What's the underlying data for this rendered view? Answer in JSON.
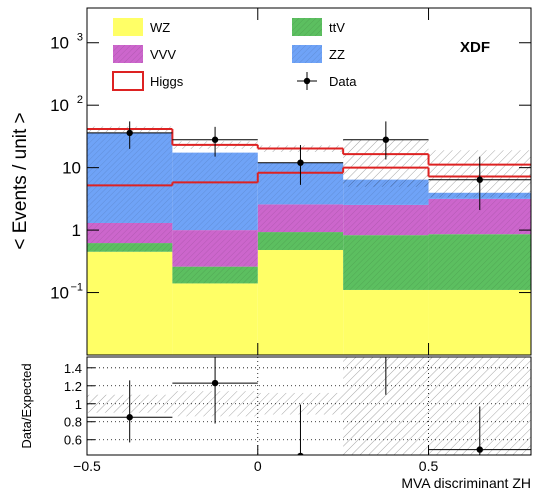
{
  "chart_data": {
    "type": "stacked-histogram",
    "annotation": "XDF",
    "ylabel": "< Events / unit >",
    "xlabel": "MVA discriminant ZH",
    "bins": [
      -0.5,
      -0.25,
      0,
      0.25,
      0.5,
      0.8
    ],
    "xlim": [
      -0.5,
      0.8
    ],
    "xticks": [
      {
        "value": -0.5,
        "label": "−0.5"
      },
      0,
      0.5
    ],
    "ylim": [
      0.01,
      3600
    ],
    "log_y": true,
    "yticks": [
      {
        "value": 0.1,
        "label": "10",
        "exponent": "−1"
      },
      1,
      10,
      {
        "value": 100,
        "label": "10",
        "exponent": "2"
      },
      {
        "value": 1000,
        "label": "10",
        "exponent": "3"
      }
    ],
    "series": [
      {
        "name": "WZ",
        "color": "#ffff66",
        "hatched": false,
        "values": [
          0.45,
          0.14,
          0.48,
          0.11,
          0.11
        ]
      },
      {
        "name": "ttV",
        "color": "#5cbf60",
        "hatched": true,
        "values": [
          0.17,
          0.12,
          0.45,
          0.72,
          0.75
        ]
      },
      {
        "name": "VVV",
        "color": "#cc66cc",
        "hatched": true,
        "values": [
          0.68,
          0.74,
          1.65,
          1.7,
          2.3
        ]
      },
      {
        "name": "ZZ",
        "color": "#6fa3f7",
        "hatched": true,
        "values": [
          35,
          16.4,
          9.4,
          3.9,
          0.8
        ]
      },
      {
        "name": "Higgs",
        "color": "#dd2222",
        "style": "outline",
        "values": [
          5.2,
          5.8,
          8.3,
          10,
          7.2
        ]
      }
    ],
    "data": {
      "name": "Data",
      "color": "#000000",
      "values": [
        36,
        28,
        12,
        28,
        6.4
      ],
      "err_low": [
        16,
        13,
        6.7,
        14.5,
        4.3
      ],
      "err_high": [
        19,
        17,
        11,
        27,
        8.6
      ]
    },
    "ratio": {
      "ylabel": "Data/Expected",
      "ylim": [
        0.43,
        1.52
      ],
      "yticks": [
        0.6,
        0.8,
        1,
        1.2,
        1.4
      ],
      "values": [
        0.85,
        1.23,
        0.42,
        1.7,
        0.49
      ],
      "err_low": [
        0.28,
        0.45,
        0.42,
        0.6,
        0.49
      ],
      "err_high": [
        0.41,
        0.35,
        0.57,
        0.6,
        0.48
      ],
      "uncertainty": [
        0.1,
        0.14,
        0.12,
        0.7,
        0.7
      ]
    }
  }
}
